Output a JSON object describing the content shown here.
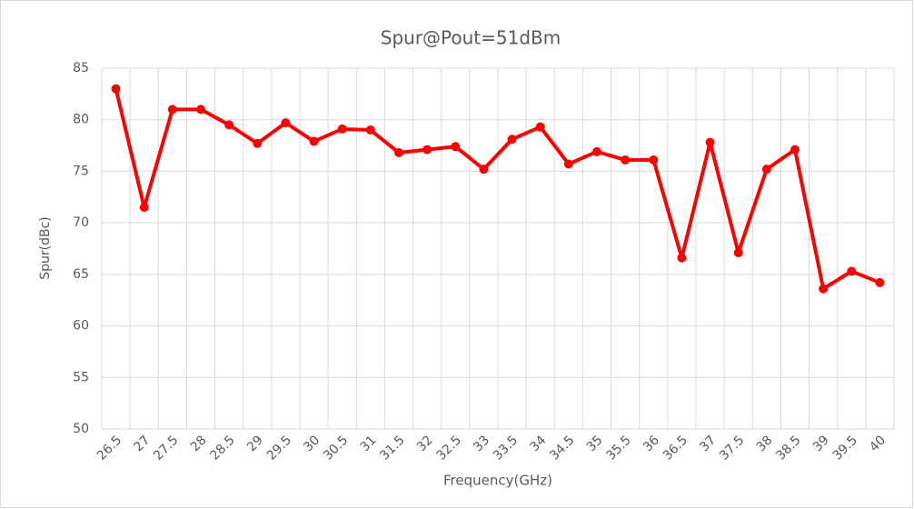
{
  "chart_data": {
    "type": "line",
    "title": "Spur@Pout=51dBm",
    "x_label": "Frequency(GHz)",
    "y_label": "Spur(dBc)",
    "categories": [
      "26.5",
      "27",
      "27.5",
      "28",
      "28.5",
      "29",
      "29.5",
      "30",
      "30.5",
      "31",
      "31.5",
      "32",
      "32.5",
      "33",
      "33.5",
      "34",
      "34.5",
      "35",
      "35.5",
      "36",
      "36.5",
      "37",
      "37.5",
      "38",
      "38.5",
      "39",
      "39.5",
      "40"
    ],
    "values": [
      83.0,
      71.5,
      81.0,
      81.0,
      79.5,
      77.7,
      79.7,
      77.9,
      79.1,
      79.0,
      76.8,
      77.1,
      77.4,
      75.2,
      78.1,
      79.3,
      75.7,
      76.9,
      76.1,
      76.1,
      66.6,
      77.8,
      67.1,
      75.2,
      77.1,
      63.6,
      65.3,
      64.2
    ],
    "color": "#ff0000",
    "ylim": [
      50,
      85
    ],
    "yticks": [
      50,
      55,
      60,
      65,
      70,
      75,
      80,
      85
    ],
    "grid": true
  }
}
